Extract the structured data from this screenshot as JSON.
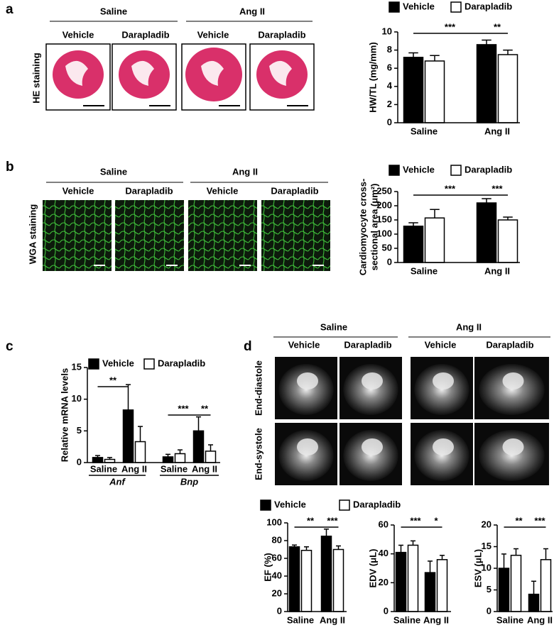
{
  "figure": {
    "panel_labels": [
      "a",
      "b",
      "c",
      "d"
    ],
    "a": {
      "groups": [
        "Saline",
        "Ang II"
      ],
      "columns": [
        "Vehicle",
        "Darapladib",
        "Vehicle",
        "Darapladib"
      ],
      "row_label": "HE staining"
    },
    "b": {
      "groups": [
        "Saline",
        "Ang II"
      ],
      "columns": [
        "Vehicle",
        "Darapladib",
        "Vehicle",
        "Darapladib"
      ],
      "row_label": "WGA staining"
    },
    "d": {
      "groups": [
        "Saline",
        "Ang II"
      ],
      "columns": [
        "Vehicle",
        "Darapladib",
        "Vehicle",
        "Darapladib"
      ],
      "row_labels": [
        "End-diastole",
        "End-systole"
      ]
    }
  },
  "chart_data": [
    {
      "type": "bar",
      "ylabel": "HW/TL (mg/mm)",
      "categories": [
        "Saline",
        "Ang II"
      ],
      "series": [
        {
          "name": "Vehicle",
          "color": "#000000",
          "values": [
            7.2,
            8.6
          ],
          "errors": [
            0.5,
            0.5
          ]
        },
        {
          "name": "Darapladib",
          "color": "#ffffff",
          "values": [
            6.8,
            7.5
          ],
          "errors": [
            0.6,
            0.5
          ]
        }
      ],
      "ylim": [
        0,
        10
      ],
      "yticks": [
        0,
        2,
        4,
        6,
        8,
        10
      ],
      "legend": "top",
      "annotations": [
        "***",
        "**"
      ]
    },
    {
      "type": "bar",
      "ylabel": [
        "Cardiomyocyte cross-",
        "sectional area (μm²)"
      ],
      "categories": [
        "Saline",
        "Ang II"
      ],
      "series": [
        {
          "name": "Vehicle",
          "color": "#000000",
          "values": [
            128,
            210
          ],
          "errors": [
            12,
            15
          ]
        },
        {
          "name": "Darapladib",
          "color": "#ffffff",
          "values": [
            157,
            150
          ],
          "errors": [
            30,
            10
          ]
        }
      ],
      "ylim": [
        0,
        250
      ],
      "yticks": [
        0,
        50,
        100,
        150,
        200,
        250
      ],
      "legend": "top",
      "annotations": [
        "***",
        "***"
      ]
    },
    {
      "type": "bar",
      "ylabel": "Relative mRNA levels",
      "categories": [
        "Saline",
        "Ang II",
        "Saline",
        "Ang II"
      ],
      "groups": [
        "Anf",
        "Bnp"
      ],
      "series": [
        {
          "name": "Vehicle",
          "color": "#000000",
          "values": [
            0.8,
            8.3,
            0.9,
            5.0
          ],
          "errors": [
            0.3,
            4.0,
            0.4,
            2.2
          ]
        },
        {
          "name": "Darapladib",
          "color": "#ffffff",
          "values": [
            0.5,
            3.3,
            1.4,
            1.8
          ],
          "errors": [
            0.3,
            2.4,
            0.6,
            1.0
          ]
        }
      ],
      "ylim": [
        0,
        15
      ],
      "yticks": [
        0,
        5,
        10,
        15
      ],
      "legend": "top",
      "annotations": [
        "**",
        "***",
        "**"
      ]
    },
    {
      "type": "bar",
      "ylabel": "EF (%)",
      "categories": [
        "Saline",
        "Ang II"
      ],
      "series": [
        {
          "name": "Vehicle",
          "color": "#000000",
          "values": [
            73,
            85
          ],
          "errors": [
            2,
            8
          ]
        },
        {
          "name": "Darapladib",
          "color": "#ffffff",
          "values": [
            69,
            70
          ],
          "errors": [
            4,
            4
          ]
        }
      ],
      "ylim": [
        0,
        100
      ],
      "yticks": [
        0,
        20,
        40,
        60,
        80,
        100
      ],
      "legend": "top",
      "annotations": [
        "**",
        "***"
      ]
    },
    {
      "type": "bar",
      "ylabel": "EDV (μL)",
      "categories": [
        "Saline",
        "Ang II"
      ],
      "series": [
        {
          "color": "#000000",
          "values": [
            41,
            27
          ],
          "errors": [
            5,
            8
          ]
        },
        {
          "color": "#ffffff",
          "values": [
            46,
            36
          ],
          "errors": [
            3,
            3
          ]
        }
      ],
      "ylim": [
        0,
        60
      ],
      "yticks": [
        0,
        20,
        40,
        60
      ],
      "annotations": [
        "***",
        "*"
      ]
    },
    {
      "type": "bar",
      "ylabel": "ESV (μL)",
      "categories": [
        "Saline",
        "Ang II"
      ],
      "series": [
        {
          "color": "#000000",
          "values": [
            10,
            4
          ],
          "errors": [
            3.3,
            3
          ]
        },
        {
          "color": "#ffffff",
          "values": [
            13,
            12
          ],
          "errors": [
            1.5,
            2.5
          ]
        }
      ],
      "ylim": [
        0,
        20
      ],
      "yticks": [
        0,
        5,
        10,
        15,
        20
      ],
      "annotations": [
        "**",
        "***"
      ]
    }
  ]
}
